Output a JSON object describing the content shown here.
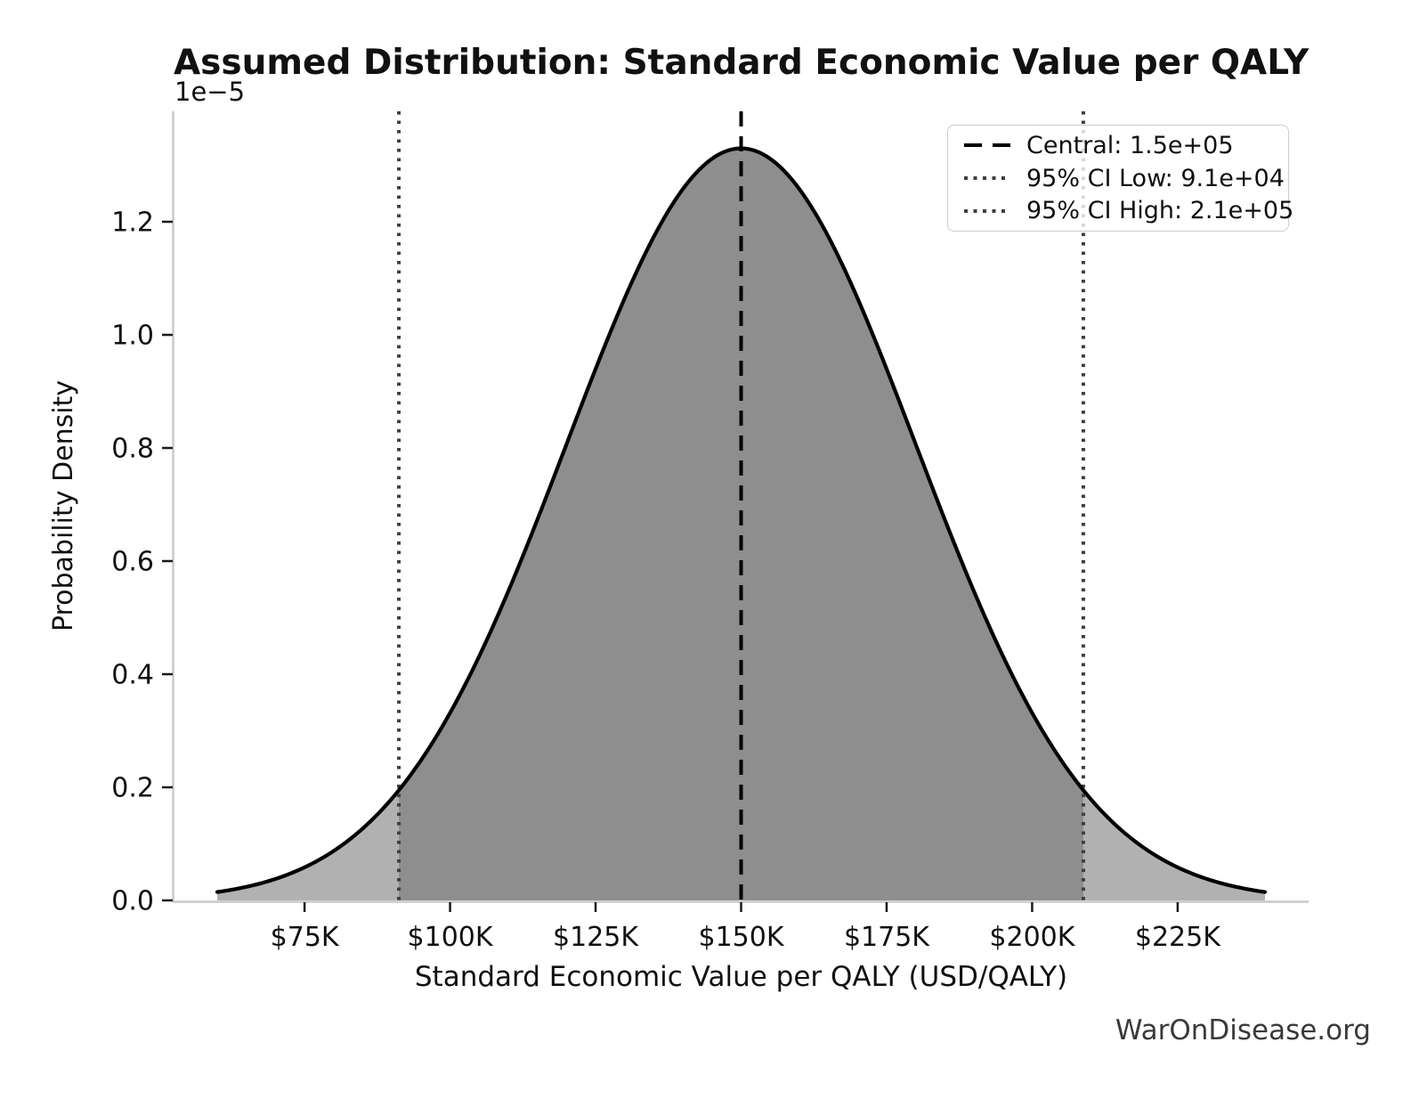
{
  "figure": {
    "title": "Assumed Distribution: Standard Economic Value per QALY",
    "watermark": "WarOnDisease.org"
  },
  "axes": {
    "x_label": "Standard Economic Value per QALY (USD/QALY)",
    "y_label": "Probability Density",
    "y_offset_text": "1e−5"
  },
  "legend": {
    "items": [
      {
        "label": "Central: 1.5e+05",
        "style": "dashed",
        "color": "#000000"
      },
      {
        "label": "95% CI Low: 9.1e+04",
        "style": "dotted",
        "color": "#3e3e3e"
      },
      {
        "label": "95% CI High: 2.1e+05",
        "style": "dotted",
        "color": "#3e3e3e"
      }
    ]
  },
  "colors": {
    "curve": "#000000",
    "fill_tails": "#b1b1b1",
    "fill_ci": "#8e8e8e",
    "central_line": "#000000",
    "ci_line": "#3e3e3e",
    "spine": "#c9c9c9",
    "tick": "#1a1a1a",
    "watermark": "#3a3a3a",
    "legend_border": "#cccccc"
  },
  "chart_data": {
    "type": "area",
    "title": "Assumed Distribution: Standard Economic Value per QALY",
    "xlabel": "Standard Economic Value per QALY (USD/QALY)",
    "ylabel": "Probability Density",
    "grid": false,
    "legend_position": "upper right",
    "y_units": "probability density, values in 1e-5 per USD",
    "distribution": {
      "family": "normal",
      "mean": 150000,
      "std": 30000,
      "x_min": 60000,
      "x_max": 240000
    },
    "x_usd": [
      60000,
      70000,
      80000,
      90000,
      100000,
      110000,
      120000,
      130000,
      140000,
      150000,
      160000,
      170000,
      180000,
      190000,
      200000,
      210000,
      220000,
      230000,
      240000
    ],
    "density_1e5": [
      0.01477,
      0.03799,
      0.08741,
      0.17998,
      0.33159,
      0.5467,
      0.80657,
      1.06483,
      1.25795,
      1.32981,
      1.25795,
      1.06483,
      0.80657,
      0.5467,
      0.33159,
      0.17998,
      0.08741,
      0.03799,
      0.01477
    ],
    "markers": {
      "central": {
        "value": 150000,
        "label": "Central: 1.5e+05",
        "style": "dashed"
      },
      "ci_low": {
        "value": 91200,
        "label": "95% CI Low: 9.1e+04",
        "style": "dotted"
      },
      "ci_high": {
        "value": 208800,
        "label": "95% CI High: 2.1e+05",
        "style": "dotted"
      }
    },
    "x_ticks": [
      {
        "value": 75000,
        "label": "$75K"
      },
      {
        "value": 100000,
        "label": "$100K"
      },
      {
        "value": 125000,
        "label": "$125K"
      },
      {
        "value": 150000,
        "label": "$150K"
      },
      {
        "value": 175000,
        "label": "$175K"
      },
      {
        "value": 200000,
        "label": "$200K"
      },
      {
        "value": 225000,
        "label": "$225K"
      }
    ],
    "y_ticks_1e5": [
      {
        "value": 0,
        "label": "0.0"
      },
      {
        "value": 0.2,
        "label": "0.2"
      },
      {
        "value": 0.4,
        "label": "0.4"
      },
      {
        "value": 0.6,
        "label": "0.6"
      },
      {
        "value": 0.8,
        "label": "0.8"
      },
      {
        "value": 1.0,
        "label": "1.0"
      },
      {
        "value": 1.2,
        "label": "1.2"
      }
    ],
    "xlim": [
      52500,
      247500
    ],
    "ylim_1e5": [
      0,
      1.3953
    ]
  }
}
